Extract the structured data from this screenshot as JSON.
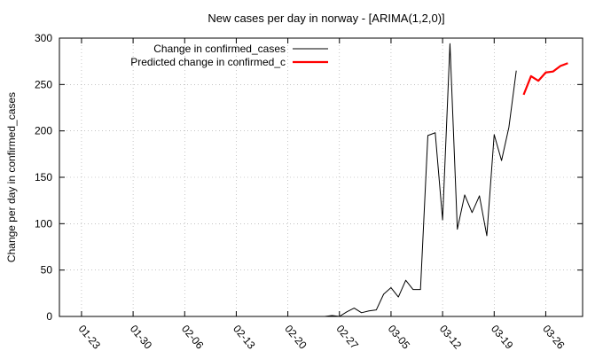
{
  "chart_data": {
    "type": "line",
    "title": "New cases per day in norway -  [ARIMA(1,2,0)]",
    "xlabel": "",
    "ylabel": "Change per day in confirmed_cases",
    "x_axis_type": "date",
    "xlim": [
      "2020-01-20",
      "2020-03-31"
    ],
    "ylim": [
      0,
      300
    ],
    "y_ticks": [
      0,
      50,
      100,
      150,
      200,
      250,
      300
    ],
    "x_ticks": [
      {
        "date": "2020-01-23",
        "label": "01-23"
      },
      {
        "date": "2020-01-30",
        "label": "01-30"
      },
      {
        "date": "2020-02-06",
        "label": "02-06"
      },
      {
        "date": "2020-02-13",
        "label": "02-13"
      },
      {
        "date": "2020-02-20",
        "label": "02-20"
      },
      {
        "date": "2020-02-27",
        "label": "02-27"
      },
      {
        "date": "2020-03-05",
        "label": "03-05"
      },
      {
        "date": "2020-03-12",
        "label": "03-12"
      },
      {
        "date": "2020-03-19",
        "label": "03-19"
      },
      {
        "date": "2020-03-26",
        "label": "03-26"
      }
    ],
    "grid": true,
    "legend_position": "top-left",
    "series": [
      {
        "name": "Change in confirmed_cases",
        "color": "#000000",
        "points": [
          [
            "2020-01-22",
            0
          ],
          [
            "2020-01-23",
            0
          ],
          [
            "2020-01-24",
            0
          ],
          [
            "2020-01-25",
            0
          ],
          [
            "2020-01-26",
            0
          ],
          [
            "2020-01-27",
            0
          ],
          [
            "2020-01-28",
            0
          ],
          [
            "2020-01-29",
            0
          ],
          [
            "2020-01-30",
            0
          ],
          [
            "2020-01-31",
            0
          ],
          [
            "2020-02-01",
            0
          ],
          [
            "2020-02-02",
            0
          ],
          [
            "2020-02-03",
            0
          ],
          [
            "2020-02-04",
            0
          ],
          [
            "2020-02-05",
            0
          ],
          [
            "2020-02-06",
            0
          ],
          [
            "2020-02-07",
            0
          ],
          [
            "2020-02-08",
            0
          ],
          [
            "2020-02-09",
            0
          ],
          [
            "2020-02-10",
            0
          ],
          [
            "2020-02-11",
            0
          ],
          [
            "2020-02-12",
            0
          ],
          [
            "2020-02-13",
            0
          ],
          [
            "2020-02-14",
            0
          ],
          [
            "2020-02-15",
            0
          ],
          [
            "2020-02-16",
            0
          ],
          [
            "2020-02-17",
            0
          ],
          [
            "2020-02-18",
            0
          ],
          [
            "2020-02-19",
            0
          ],
          [
            "2020-02-20",
            0
          ],
          [
            "2020-02-21",
            0
          ],
          [
            "2020-02-22",
            0
          ],
          [
            "2020-02-23",
            0
          ],
          [
            "2020-02-24",
            0
          ],
          [
            "2020-02-25",
            0
          ],
          [
            "2020-02-26",
            1
          ],
          [
            "2020-02-27",
            0
          ],
          [
            "2020-02-28",
            5
          ],
          [
            "2020-02-29",
            9
          ],
          [
            "2020-03-01",
            4
          ],
          [
            "2020-03-02",
            6
          ],
          [
            "2020-03-03",
            7
          ],
          [
            "2020-03-04",
            24
          ],
          [
            "2020-03-05",
            31
          ],
          [
            "2020-03-06",
            21
          ],
          [
            "2020-03-07",
            39
          ],
          [
            "2020-03-08",
            29
          ],
          [
            "2020-03-09",
            29
          ],
          [
            "2020-03-10",
            195
          ],
          [
            "2020-03-11",
            198
          ],
          [
            "2020-03-12",
            104
          ],
          [
            "2020-03-13",
            294
          ],
          [
            "2020-03-14",
            94
          ],
          [
            "2020-03-15",
            131
          ],
          [
            "2020-03-16",
            112
          ],
          [
            "2020-03-17",
            130
          ],
          [
            "2020-03-18",
            87
          ],
          [
            "2020-03-19",
            196
          ],
          [
            "2020-03-20",
            168
          ],
          [
            "2020-03-21",
            204
          ],
          [
            "2020-03-22",
            265
          ]
        ]
      },
      {
        "name": "Predicted change in confirmed_c",
        "color": "#ff0000",
        "points": [
          [
            "2020-03-23",
            239
          ],
          [
            "2020-03-24",
            259
          ],
          [
            "2020-03-25",
            254
          ],
          [
            "2020-03-26",
            263
          ],
          [
            "2020-03-27",
            264
          ],
          [
            "2020-03-28",
            270
          ],
          [
            "2020-03-29",
            273
          ]
        ]
      }
    ]
  }
}
